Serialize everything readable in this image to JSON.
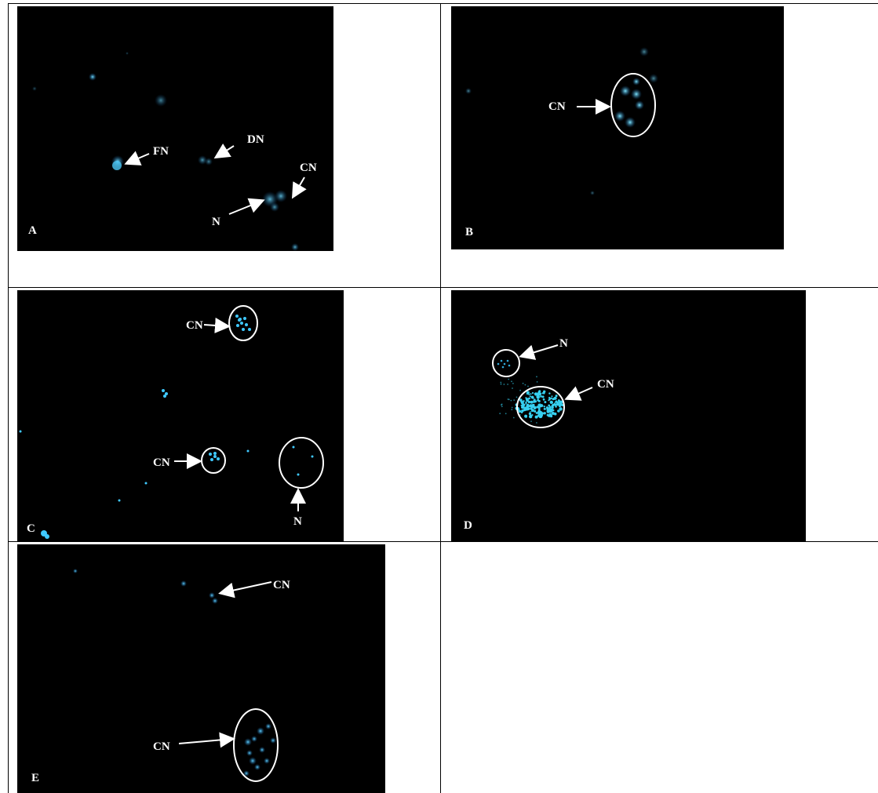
{
  "panels": [
    {
      "id": "A",
      "letter": "A",
      "annotations": [
        "FN",
        "DN",
        "CN",
        "N"
      ]
    },
    {
      "id": "B",
      "letter": "B",
      "annotations": [
        "CN"
      ]
    },
    {
      "id": "C",
      "letter": "C",
      "annotations": [
        "CN",
        "CN",
        "N"
      ]
    },
    {
      "id": "D",
      "letter": "D",
      "annotations": [
        "N",
        "CN"
      ]
    },
    {
      "id": "E",
      "letter": "E",
      "annotations": [
        "CN",
        "CN"
      ]
    }
  ],
  "colors": {
    "nucleus": "#3ab0ff",
    "nucleus_bright": "#5fd8ff",
    "cluster": "#35c8e8",
    "annotation": "#ffffff"
  }
}
